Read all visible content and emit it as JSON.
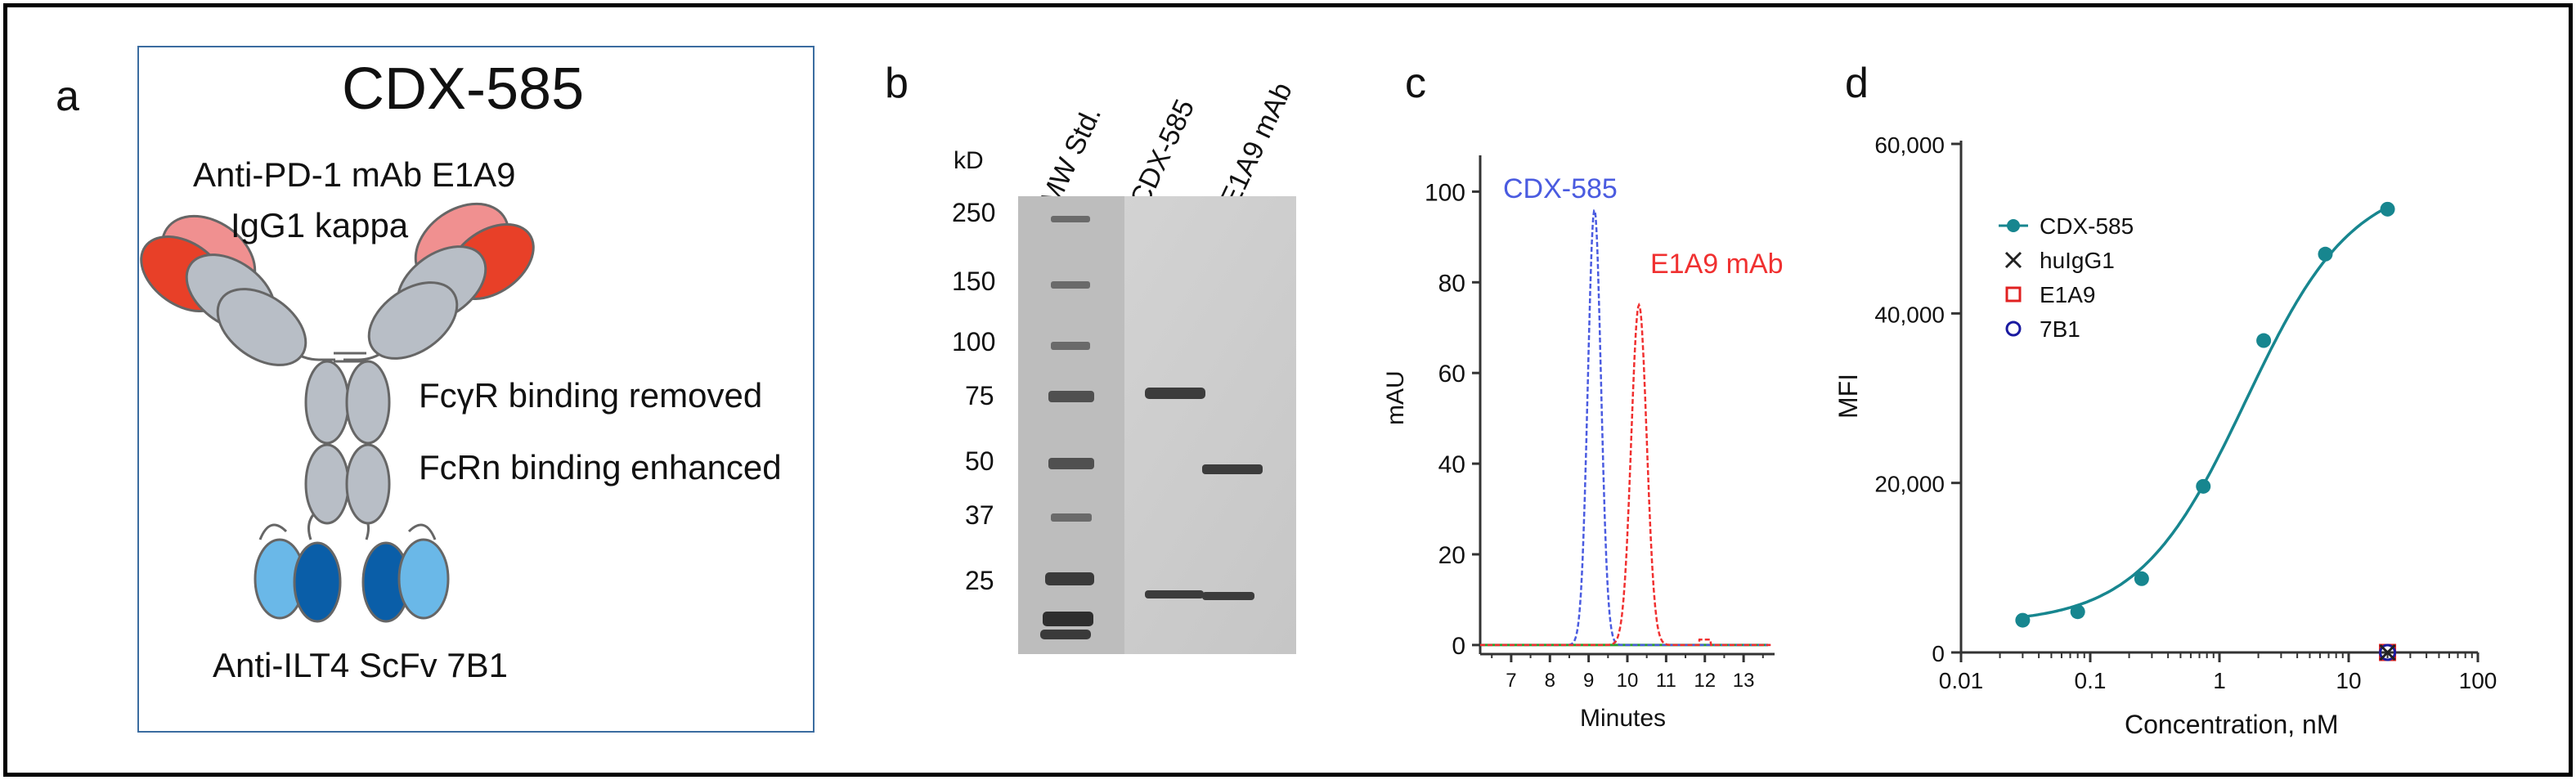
{
  "panels": {
    "a": {
      "letter": "a",
      "title": "CDX-585",
      "label_pd1": "Anti-PD-1 mAb E1A9",
      "label_igg": "IgG1 kappa",
      "label_fcgr": "FcγR binding removed",
      "label_fcrn": "FcRn binding enhanced",
      "label_scfv": "Anti-ILT4 ScFv 7B1"
    },
    "b": {
      "letter": "b",
      "unit": "kD",
      "lanes": [
        "MW Std.",
        "CDX-585",
        "E1A9 mAb"
      ],
      "markers": [
        "250",
        "150",
        "100",
        "75",
        "50",
        "37",
        "25"
      ]
    },
    "c": {
      "letter": "c",
      "ylabel": "mAU",
      "xlabel": "Minutes",
      "series1": "CDX-585",
      "series2": "E1A9 mAb"
    },
    "d": {
      "letter": "d",
      "ylabel": "MFI",
      "xlabel": "Concentration, nM"
    }
  },
  "colors": {
    "light_red": "#f09090",
    "dark_red": "#e84028",
    "grey": "#b8bec6",
    "light_blue": "#6ab8e8",
    "dark_blue": "#0a5ea8",
    "teal": "#17868f",
    "chrom_blue": "#4a5be0",
    "chrom_red": "#f03030",
    "chrom_green": "#2ca02c"
  },
  "chart_data": [
    {
      "type": "line",
      "title": "",
      "xlabel": "Minutes",
      "ylabel": "mAU",
      "xlim": [
        6.2,
        13.8
      ],
      "ylim": [
        -2,
        108
      ],
      "xticks": [
        "7",
        "8",
        "9",
        "10",
        "11",
        "12",
        "13"
      ],
      "yticks": [
        "0",
        "20",
        "40",
        "60",
        "80",
        "100"
      ],
      "series": [
        {
          "name": "CDX-585",
          "color": "#4a5be0",
          "peak_x": 9.15,
          "peak_y": 96,
          "width": 0.17
        },
        {
          "name": "E1A9 mAb",
          "color": "#f03030",
          "peak_x": 10.3,
          "peak_y": 75,
          "width": 0.2
        }
      ]
    },
    {
      "type": "scatter",
      "title": "",
      "xlabel": "Concentration, nM",
      "ylabel": "MFI",
      "x_scale": "log",
      "xlim": [
        0.01,
        100
      ],
      "ylim": [
        0,
        60000
      ],
      "xticks": [
        "0.01",
        "0.1",
        "1",
        "10",
        "100"
      ],
      "yticks": [
        "0",
        "20,000",
        "40,000",
        "60,000"
      ],
      "legend_position": "top-left",
      "series": [
        {
          "name": "CDX-585",
          "marker": "filled-circle",
          "color": "#17868f",
          "x": [
            0.03,
            0.08,
            0.25,
            0.75,
            2.2,
            6.6,
            20
          ],
          "y": [
            3800,
            4800,
            8700,
            19600,
            36800,
            47000,
            52300
          ]
        },
        {
          "name": "huIgG1",
          "marker": "x",
          "color": "#222222",
          "x": [
            20
          ],
          "y": [
            0
          ]
        },
        {
          "name": "E1A9",
          "marker": "open-square",
          "color": "#e02020",
          "x": [
            20
          ],
          "y": [
            0
          ]
        },
        {
          "name": "7B1",
          "marker": "open-circle",
          "color": "#1a1aa0",
          "x": [
            20
          ],
          "y": [
            0
          ]
        }
      ]
    }
  ]
}
